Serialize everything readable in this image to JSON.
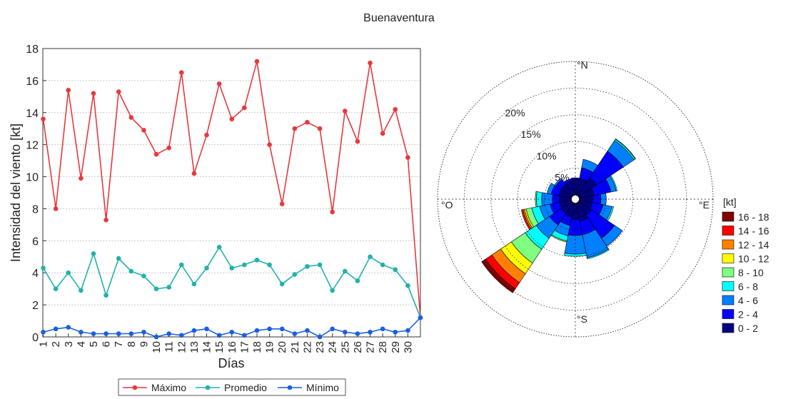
{
  "title": "Buenaventura",
  "chart_data": [
    {
      "type": "line",
      "xlabel": "Días",
      "ylabel": "Intensidad del viento [kt]",
      "ylim": [
        0,
        18
      ],
      "yticks": [
        0,
        2,
        4,
        6,
        8,
        10,
        12,
        14,
        16,
        18
      ],
      "x": [
        1,
        2,
        3,
        4,
        5,
        6,
        7,
        8,
        9,
        10,
        11,
        12,
        13,
        14,
        15,
        16,
        17,
        18,
        19,
        20,
        21,
        22,
        23,
        24,
        25,
        26,
        27,
        28,
        29,
        30,
        31
      ],
      "x_tick_labels": [
        "1",
        "2",
        "3",
        "4",
        "5",
        "6",
        "7",
        "8",
        "9",
        "10",
        "11",
        "12",
        "13",
        "14",
        "15",
        "16",
        "17",
        "18",
        "19",
        "20",
        "21",
        "22",
        "23",
        "24",
        "25",
        "26",
        "27",
        "28",
        "29",
        "30"
      ],
      "grid": "horizontal",
      "legend_position": "bottom",
      "series": [
        {
          "name": "Máximo",
          "color": "#e8383d",
          "values": [
            13.6,
            8.0,
            15.4,
            9.9,
            15.2,
            7.3,
            15.3,
            13.7,
            12.9,
            11.4,
            11.8,
            16.5,
            10.2,
            12.6,
            15.8,
            13.6,
            14.3,
            17.2,
            12.0,
            8.3,
            13.0,
            13.4,
            13.0,
            7.8,
            14.1,
            12.2,
            17.1,
            12.7,
            14.2,
            11.2,
            1.2
          ]
        },
        {
          "name": "Promedio",
          "color": "#20b2aa",
          "values": [
            4.3,
            3.0,
            4.0,
            2.9,
            5.2,
            2.6,
            4.9,
            4.1,
            3.8,
            3.0,
            3.1,
            4.5,
            3.3,
            4.3,
            5.6,
            4.3,
            4.5,
            4.8,
            4.5,
            3.3,
            3.9,
            4.4,
            4.5,
            2.9,
            4.1,
            3.5,
            5.0,
            4.5,
            4.2,
            3.2,
            1.2
          ]
        },
        {
          "name": "Mínimo",
          "color": "#1a5fe0",
          "values": [
            0.3,
            0.5,
            0.6,
            0.3,
            0.2,
            0.2,
            0.2,
            0.2,
            0.3,
            0.0,
            0.2,
            0.1,
            0.4,
            0.5,
            0.1,
            0.3,
            0.1,
            0.4,
            0.5,
            0.5,
            0.2,
            0.4,
            0.0,
            0.5,
            0.3,
            0.2,
            0.3,
            0.5,
            0.3,
            0.4,
            1.2
          ]
        }
      ]
    },
    {
      "type": "wind-rose",
      "direction_labels": {
        "N": "°N",
        "E": "°E",
        "S": "°S",
        "W": "°O"
      },
      "radial_max_percent": 25,
      "radial_ticks": [
        5,
        10,
        15,
        20
      ],
      "radial_tick_labels": [
        "5%",
        "10%",
        "15%",
        "20%"
      ],
      "legend_title": "[kt]",
      "bins": [
        {
          "label": "0 - 2",
          "color": "#000080"
        },
        {
          "label": "2 - 4",
          "color": "#0000ff"
        },
        {
          "label": "4 - 6",
          "color": "#0080ff"
        },
        {
          "label": "6 - 8",
          "color": "#00ffff"
        },
        {
          "label": "8 - 10",
          "color": "#80ff80"
        },
        {
          "label": "10 - 12",
          "color": "#ffff00"
        },
        {
          "label": "12 - 14",
          "color": "#ff8000"
        },
        {
          "label": "14 - 16",
          "color": "#ff0000"
        },
        {
          "label": "16 - 18",
          "color": "#800000"
        }
      ],
      "sectors": [
        {
          "direction": 0,
          "cumulative": [
            3.0,
            3.2
          ]
        },
        {
          "direction": 22.5,
          "cumulative": [
            3.2,
            5.2,
            6.8
          ]
        },
        {
          "direction": 45,
          "cumulative": [
            4.0,
            10.0,
            12.4,
            12.7,
            12.8
          ]
        },
        {
          "direction": 67.5,
          "cumulative": [
            2.8,
            6.0,
            7.0,
            7.2
          ]
        },
        {
          "direction": 90,
          "cumulative": [
            2.5,
            4.0,
            5.0
          ]
        },
        {
          "direction": 112.5,
          "cumulative": [
            2.4,
            4.5,
            6.2,
            6.5
          ]
        },
        {
          "direction": 135,
          "cumulative": [
            2.8,
            8.0,
            9.8
          ]
        },
        {
          "direction": 157.5,
          "cumulative": [
            3.4,
            6.0,
            10.4,
            10.6
          ]
        },
        {
          "direction": 180,
          "cumulative": [
            3.0,
            6.0,
            9.5,
            9.9
          ]
        },
        {
          "direction": 202.5,
          "cumulative": [
            2.6,
            4.2,
            6.2,
            7.2,
            7.4
          ]
        },
        {
          "direction": 225,
          "cumulative": [
            2.4,
            5.0,
            8.0,
            10.5,
            13.6,
            16.0,
            18.0,
            19.4,
            20.3
          ]
        },
        {
          "direction": 247.5,
          "cumulative": [
            2.2,
            4.0,
            6.0,
            7.5,
            8.6,
            8.9,
            9.2,
            9.5
          ]
        },
        {
          "direction": 270,
          "cumulative": [
            2.2,
            3.5,
            5.5,
            6.5,
            6.7
          ]
        },
        {
          "direction": 292.5,
          "cumulative": [
            2.3,
            3.8,
            4.6
          ]
        },
        {
          "direction": 315,
          "cumulative": [
            2.4,
            3.6,
            3.9
          ]
        },
        {
          "direction": 337.5,
          "cumulative": [
            2.6,
            3.1
          ]
        }
      ]
    }
  ]
}
